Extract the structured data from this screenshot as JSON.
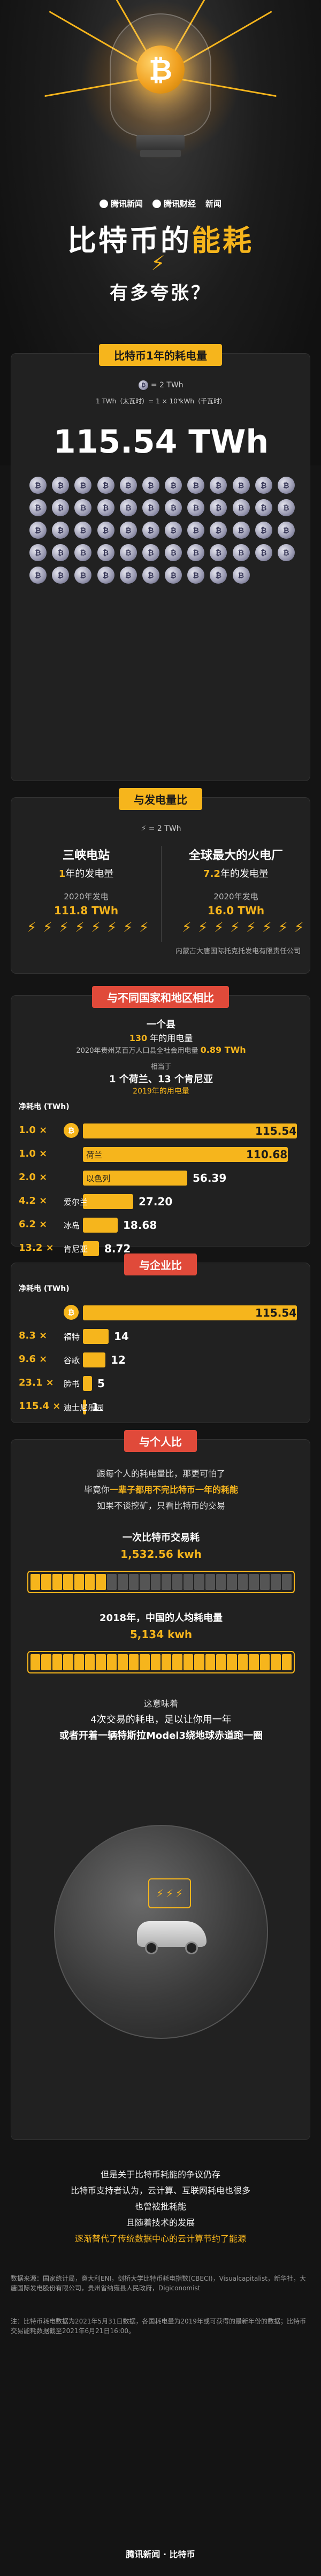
{
  "hero": {
    "brands": [
      "腾讯新闻",
      "腾讯财经",
      "新闻"
    ],
    "title_part1": "比特币的",
    "title_part2": "能耗",
    "subtitle": "有多夸张？",
    "bitcoin_symbol": "₿",
    "bolt_symbol": "⚡"
  },
  "card1": {
    "pill": "比特币1年的耗电量",
    "legend_unit": "= 2 TWh",
    "legend_formula": "1 TWh（太瓦时）= 1 × 10⁹kWh（千瓦时）",
    "value": "115.54 TWh",
    "coin_count": 58
  },
  "card2": {
    "pill": "与发电量比",
    "legend": "⚡ = 2 TWh",
    "left": {
      "head": "三峡电站",
      "sub_prefix": "1",
      "sub_suffix": "年的发电量",
      "year": "2020年发电",
      "value": "111.8 TWh",
      "bolt_count": 56
    },
    "right": {
      "head": "全球最大的火电厂",
      "sub_prefix": "7.2",
      "sub_suffix": "年的发电量",
      "year": "2020年发电",
      "value": "16.0 TWh",
      "bolt_count": 8,
      "note": "内蒙古大唐国际托克托发电有限责任公司"
    }
  },
  "card3": {
    "pill": "与不同国家和地区相比",
    "l1": "一个县",
    "l2_num": "130",
    "l2_text": "年的用电量",
    "l3": "2020年贵州某百万人口县全社会用电量",
    "l3_val": "0.89 TWh",
    "l4": "相当于",
    "l5": "1 个荷兰、13 个肯尼亚",
    "l6": "2019年的用电量",
    "header_label": "净耗电 (TWh)",
    "rows": [
      {
        "mult": "1.0",
        "name": "",
        "value": "115.54",
        "fill": 1.0
      },
      {
        "mult": "1.0",
        "name": "荷兰",
        "value": "110.68",
        "fill": 0.958
      },
      {
        "mult": "2.0",
        "name": "以色列",
        "value": "56.39",
        "fill": 0.488
      },
      {
        "mult": "4.2",
        "name": "爱尔兰",
        "value": "27.20",
        "fill": 0.235
      },
      {
        "mult": "6.2",
        "name": "冰岛",
        "value": "18.68",
        "fill": 0.162
      },
      {
        "mult": "13.2",
        "name": "肯尼亚",
        "value": "8.72",
        "fill": 0.075
      }
    ]
  },
  "card4": {
    "pill": "与企业比",
    "header_label": "净耗电 (TWh)",
    "rows": [
      {
        "mult": "",
        "name": "",
        "value": "115.54",
        "fill": 1.0
      },
      {
        "mult": "8.3",
        "name": "福特",
        "value": "14",
        "fill": 0.121
      },
      {
        "mult": "9.6",
        "name": "谷歌",
        "value": "12",
        "fill": 0.104
      },
      {
        "mult": "23.1",
        "name": "脸书",
        "value": "5",
        "fill": 0.043
      },
      {
        "mult": "115.4",
        "name": "迪士尼乐园",
        "value": "1",
        "fill": 0.009
      }
    ]
  },
  "card5": {
    "pill": "与个人比",
    "p1": "跟每个人的耗电量比，那更可怕了",
    "p2_pre": "毕竟你",
    "p2_b": "一辈子都用不完比特币一年的耗能",
    "p3": "如果不谈挖矿，只看比特币的交易",
    "t1": "一次比特币交易耗",
    "t1_val": "1,532.56 kwh",
    "t2": "2018年，中国的人均耗电量",
    "t2_val": "5,134 kwh",
    "t3": "这意味着",
    "t4": "4次交易的耗电，足以让你用一年",
    "t5": "或者开着一辆特斯拉Model3绕地球赤道跑一圈",
    "strip1_fill": 7,
    "strip2_fill": 24
  },
  "footer": {
    "end1": "但是关于比特币耗能的争议仍存",
    "end2": "比特币支持者认为，云计算、互联网耗电也很多",
    "end3": "也曾被批耗能",
    "end4": "且随着技术的发展",
    "end5": "逐渐替代了传统数据中心的云计算节约了能源",
    "sources": "数据来源：国家统计局，意大利ENI，剑桥大学比特币耗电指数(CBECI)，Visualcapitalist，新华社，大唐国际发电股份有限公司，贵州省纳雍县人民政府，Digiconomist",
    "note": "注：比特币耗电数据为2021年5月31日数据，各国耗电量为2019年或可获得的最新年份的数据；比特币交易能耗数据截至2021年6月21日16:00。",
    "brand_end": "腾讯新闻 · 比特币"
  }
}
